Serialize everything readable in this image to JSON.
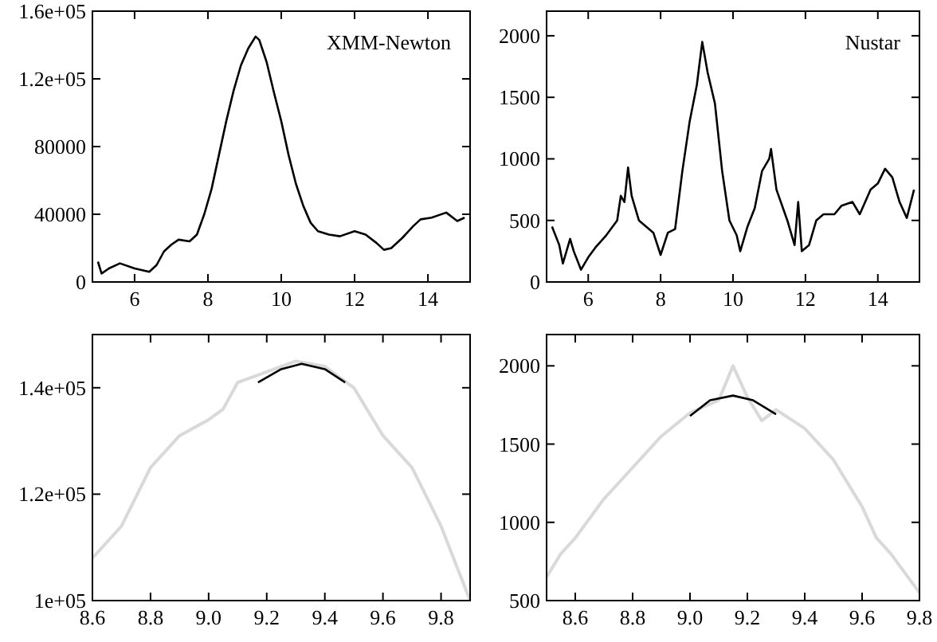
{
  "chart_data": [
    {
      "type": "line",
      "annotations": [
        "XMM-Newton"
      ],
      "xlim": [
        4.85,
        15.15
      ],
      "xticks": [
        6,
        8,
        10,
        12,
        14
      ],
      "ylim": [
        0,
        160000
      ],
      "yticks": [
        0,
        40000,
        80000,
        {
          "value": 120000,
          "label": "1.2e+05"
        },
        {
          "value": 160000,
          "label": "1.6e+05"
        }
      ],
      "series": [
        {
          "color": "#000000",
          "x": [
            5.0,
            5.1,
            5.3,
            5.6,
            6.0,
            6.4,
            6.6,
            6.8,
            7.0,
            7.2,
            7.5,
            7.7,
            7.9,
            8.1,
            8.3,
            8.5,
            8.7,
            8.9,
            9.1,
            9.3,
            9.4,
            9.6,
            9.8,
            10.0,
            10.2,
            10.4,
            10.6,
            10.8,
            11.0,
            11.3,
            11.6,
            12.0,
            12.3,
            12.6,
            12.8,
            13.0,
            13.3,
            13.6,
            13.8,
            14.1,
            14.5,
            14.8,
            15.0
          ],
          "values": [
            12000,
            5000,
            8000,
            11000,
            8000,
            6000,
            10000,
            18000,
            22000,
            25000,
            24000,
            28000,
            40000,
            55000,
            75000,
            95000,
            113000,
            128000,
            138000,
            145000,
            143000,
            130000,
            112000,
            95000,
            75000,
            58000,
            45000,
            35000,
            30000,
            28000,
            27000,
            30000,
            28000,
            23000,
            19000,
            20000,
            26000,
            33000,
            37000,
            38000,
            41000,
            36000,
            38000
          ]
        }
      ]
    },
    {
      "type": "line",
      "annotations": [
        "Nustar"
      ],
      "xlim": [
        4.85,
        15.15
      ],
      "xticks": [
        6,
        8,
        10,
        12,
        14
      ],
      "ylim": [
        0,
        2200
      ],
      "yticks": [
        0,
        500,
        1000,
        1500,
        2000
      ],
      "series": [
        {
          "color": "#000000",
          "x": [
            5.0,
            5.2,
            5.3,
            5.5,
            5.6,
            5.8,
            6.0,
            6.2,
            6.5,
            6.8,
            6.9,
            7.0,
            7.1,
            7.2,
            7.4,
            7.6,
            7.8,
            8.0,
            8.2,
            8.4,
            8.6,
            8.8,
            9.0,
            9.15,
            9.3,
            9.5,
            9.7,
            9.9,
            10.1,
            10.2,
            10.4,
            10.6,
            10.8,
            11.0,
            11.05,
            11.2,
            11.5,
            11.7,
            11.8,
            11.9,
            12.1,
            12.3,
            12.5,
            12.8,
            13.0,
            13.3,
            13.5,
            13.8,
            14.0,
            14.2,
            14.4,
            14.6,
            14.8,
            15.0
          ],
          "values": [
            450,
            300,
            150,
            350,
            250,
            100,
            200,
            280,
            380,
            500,
            700,
            650,
            930,
            700,
            500,
            450,
            400,
            220,
            400,
            430,
            900,
            1300,
            1600,
            1950,
            1700,
            1450,
            900,
            500,
            380,
            250,
            450,
            600,
            900,
            1000,
            1080,
            750,
            500,
            300,
            650,
            250,
            300,
            500,
            550,
            550,
            620,
            650,
            550,
            750,
            800,
            920,
            850,
            650,
            520,
            750
          ]
        }
      ]
    },
    {
      "type": "line",
      "xlim": [
        8.6,
        9.9
      ],
      "xticks": [
        8.6,
        8.8,
        {
          "value": 9,
          "label": "9.0"
        },
        9.2,
        9.4,
        9.6,
        9.8
      ],
      "ylim": [
        100000,
        150000
      ],
      "yticks": [
        {
          "value": 100000,
          "label": "1e+05"
        },
        {
          "value": 120000,
          "label": "1.2e+05"
        },
        {
          "value": 140000,
          "label": "1.4e+05"
        }
      ],
      "series": [
        {
          "color": "#d9d9d9",
          "x": [
            8.6,
            8.7,
            8.8,
            8.9,
            9.0,
            9.05,
            9.1,
            9.2,
            9.3,
            9.4,
            9.5,
            9.6,
            9.7,
            9.8,
            9.9
          ],
          "values": [
            108000,
            114000,
            125000,
            131000,
            134000,
            136000,
            141000,
            143000,
            145000,
            144000,
            140000,
            131000,
            125000,
            114000,
            100000
          ]
        },
        {
          "color": "#000000",
          "x": [
            9.17,
            9.25,
            9.32,
            9.4,
            9.47
          ],
          "values": [
            141000,
            143500,
            144500,
            143500,
            141000
          ]
        }
      ]
    },
    {
      "type": "line",
      "xlim": [
        8.5,
        9.8
      ],
      "xticks": [
        8.6,
        8.8,
        {
          "value": 9,
          "label": "9.0"
        },
        9.2,
        9.4,
        9.6,
        9.8
      ],
      "ylim": [
        500,
        2200
      ],
      "yticks": [
        500,
        1000,
        1500,
        2000
      ],
      "series": [
        {
          "color": "#d9d9d9",
          "x": [
            8.5,
            8.55,
            8.6,
            8.7,
            8.8,
            8.9,
            9.0,
            9.1,
            9.15,
            9.2,
            9.25,
            9.3,
            9.4,
            9.5,
            9.6,
            9.65,
            9.7,
            9.8
          ],
          "values": [
            650,
            800,
            900,
            1150,
            1350,
            1550,
            1700,
            1780,
            2000,
            1800,
            1650,
            1720,
            1600,
            1400,
            1100,
            900,
            800,
            550
          ]
        },
        {
          "color": "#000000",
          "x": [
            9.0,
            9.07,
            9.15,
            9.22,
            9.3
          ],
          "values": [
            1680,
            1780,
            1810,
            1780,
            1690
          ]
        }
      ]
    }
  ]
}
